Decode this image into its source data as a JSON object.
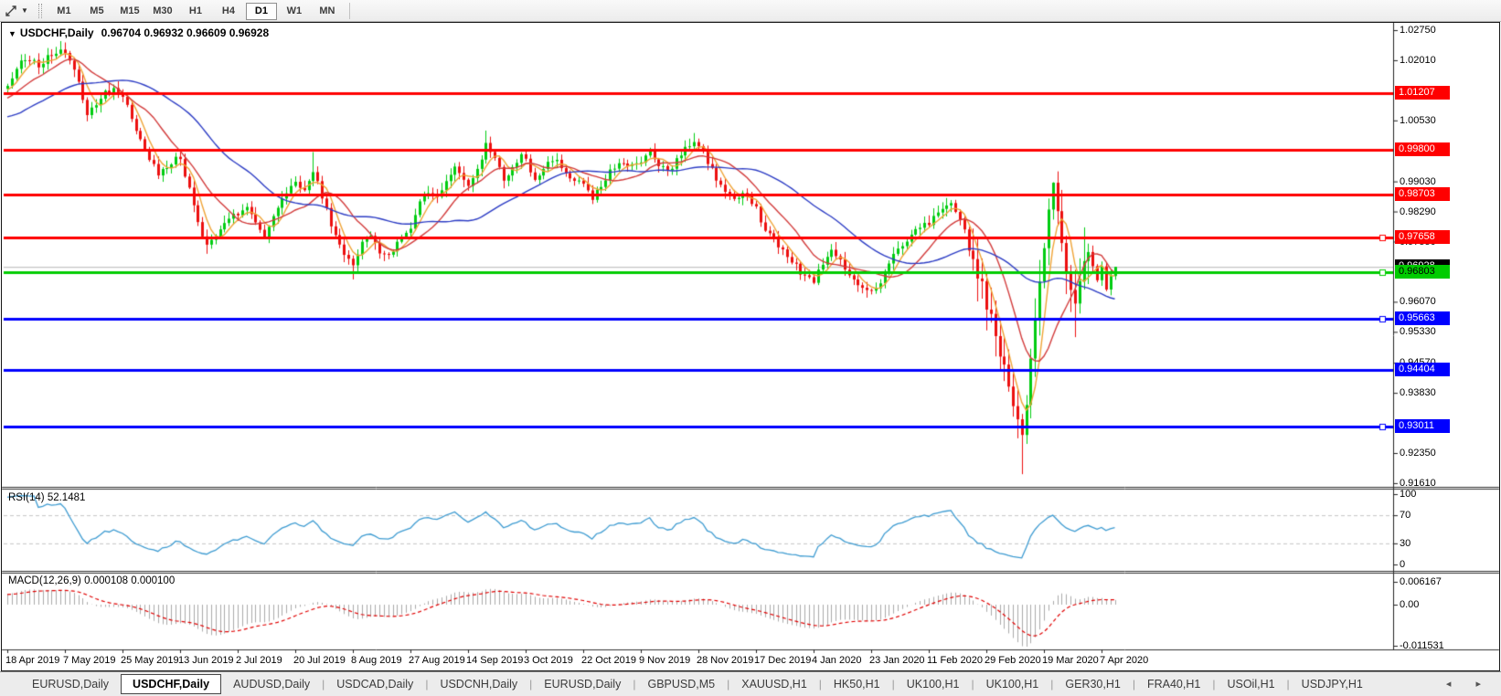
{
  "toolbar": {
    "timeframes": [
      "M1",
      "M5",
      "M15",
      "M30",
      "H1",
      "H4",
      "D1",
      "W1",
      "MN"
    ],
    "active_timeframe": "D1"
  },
  "chart": {
    "symbol_title": "USDCHF,Daily",
    "ohlc_display": "0.96704 0.96932 0.96609 0.96928",
    "price_axis_ticks": [
      1.0275,
      1.0201,
      1.0053,
      0.9903,
      0.9829,
      0.9755,
      0.9607,
      0.9533,
      0.9457,
      0.9383,
      0.9235,
      0.9161
    ],
    "current_price_badge": {
      "label": "0.96928",
      "bg": "#000000",
      "text": "#ffffff"
    }
  },
  "rsi": {
    "label": "RSI(14) 52.1481",
    "period": 14,
    "value": 52.1481,
    "axis_labels": [
      100,
      70,
      30,
      0
    ],
    "dashed_levels": [
      70,
      30
    ],
    "line_color": "#3d9bd1"
  },
  "macd": {
    "label": "MACD(12,26,9) 0.000108 0.000100",
    "axis_labels": [
      0.006167,
      0,
      -0.011531
    ],
    "histogram_color": "#aaaaaa",
    "signal_color": "#e00000"
  },
  "tabs": {
    "items": [
      "EURUSD,Daily",
      "USDCHF,Daily",
      "AUDUSD,Daily",
      "USDCAD,Daily",
      "USDCNH,Daily",
      "EURUSD,Daily",
      "GBPUSD,M5",
      "XAUUSD,H1",
      "HK50,H1",
      "UK100,H1",
      "UK100,H1",
      "GER30,H1",
      "FRA40,H1",
      "USOil,H1",
      "USDJPY,H1"
    ],
    "active_index": 1,
    "scroll_arrows": "◂ ▸"
  },
  "chart_data": {
    "type": "candlestick",
    "symbol": "USDCHF",
    "timeframe": "Daily",
    "visible_bars": 251,
    "last_bar": {
      "open": 0.96704,
      "high": 0.96932,
      "low": 0.96609,
      "close": 0.96928
    },
    "current_price": 0.96928,
    "y_axis": {
      "min": 0.9161,
      "max": 1.0275
    },
    "x_axis_dates": [
      "18 Apr 2019",
      "7 May 2019",
      "25 May 2019",
      "13 Jun 2019",
      "2 Jul 2019",
      "20 Jul 2019",
      "8 Aug 2019",
      "27 Aug 2019",
      "14 Sep 2019",
      "3 Oct 2019",
      "22 Oct 2019",
      "9 Nov 2019",
      "28 Nov 2019",
      "17 Dec 2019",
      "4 Jan 2020",
      "23 Jan 2020",
      "11 Feb 2020",
      "29 Feb 2020",
      "19 Mar 2020",
      "7 Apr 2020"
    ],
    "candle_colors": {
      "up": "#00cc11",
      "down": "#ec0f0f"
    },
    "price_waypoints": [
      [
        0,
        1.0135
      ],
      [
        2,
        1.018
      ],
      [
        4,
        1.0205
      ],
      [
        7,
        1.019
      ],
      [
        10,
        1.0215
      ],
      [
        12,
        1.0225
      ],
      [
        14,
        1.0205
      ],
      [
        16,
        1.015
      ],
      [
        18,
        1.0065
      ],
      [
        20,
        1.009
      ],
      [
        22,
        1.012
      ],
      [
        24,
        1.0135
      ],
      [
        26,
        1.011
      ],
      [
        28,
        1.006
      ],
      [
        30,
        1.001
      ],
      [
        32,
        0.996
      ],
      [
        34,
        0.992
      ],
      [
        36,
        0.994
      ],
      [
        38,
        0.9965
      ],
      [
        39,
        0.995
      ],
      [
        41,
        0.989
      ],
      [
        43,
        0.98
      ],
      [
        45,
        0.9745
      ],
      [
        47,
        0.9765
      ],
      [
        49,
        0.98
      ],
      [
        52,
        0.9825
      ],
      [
        54,
        0.9845
      ],
      [
        56,
        0.9805
      ],
      [
        58,
        0.977
      ],
      [
        60,
        0.982
      ],
      [
        62,
        0.986
      ],
      [
        65,
        0.99
      ],
      [
        67,
        0.9875
      ],
      [
        69,
        0.993
      ],
      [
        71,
        0.9865
      ],
      [
        73,
        0.98
      ],
      [
        75,
        0.974
      ],
      [
        78,
        0.9695
      ],
      [
        80,
        0.9755
      ],
      [
        82,
        0.977
      ],
      [
        84,
        0.973
      ],
      [
        86,
        0.9715
      ],
      [
        88,
        0.9755
      ],
      [
        91,
        0.979
      ],
      [
        93,
        0.9855
      ],
      [
        95,
        0.988
      ],
      [
        97,
        0.986
      ],
      [
        99,
        0.99
      ],
      [
        101,
        0.994
      ],
      [
        103,
        0.991
      ],
      [
        104,
        0.9895
      ],
      [
        106,
        0.993
      ],
      [
        108,
        0.9995
      ],
      [
        110,
        0.9965
      ],
      [
        112,
        0.991
      ],
      [
        114,
        0.9935
      ],
      [
        116,
        0.9975
      ],
      [
        117,
        0.996
      ],
      [
        119,
        0.9905
      ],
      [
        121,
        0.993
      ],
      [
        123,
        0.996
      ],
      [
        125,
        0.994
      ],
      [
        127,
        0.9915
      ],
      [
        130,
        0.99
      ],
      [
        132,
        0.9865
      ],
      [
        134,
        0.989
      ],
      [
        136,
        0.9925
      ],
      [
        138,
        0.9955
      ],
      [
        140,
        0.9935
      ],
      [
        143,
        0.9955
      ],
      [
        145,
        0.9975
      ],
      [
        147,
        0.9945
      ],
      [
        149,
        0.9925
      ],
      [
        151,
        0.9955
      ],
      [
        153,
        0.9985
      ],
      [
        155,
        1.0
      ],
      [
        156,
        0.999
      ],
      [
        158,
        0.995
      ],
      [
        160,
        0.991
      ],
      [
        162,
        0.988
      ],
      [
        164,
        0.9855
      ],
      [
        166,
        0.9875
      ],
      [
        168,
        0.985
      ],
      [
        169,
        0.9835
      ],
      [
        170,
        0.98
      ],
      [
        173,
        0.976
      ],
      [
        176,
        0.972
      ],
      [
        179,
        0.968
      ],
      [
        182,
        0.966
      ],
      [
        184,
        0.97
      ],
      [
        186,
        0.973
      ],
      [
        189,
        0.969
      ],
      [
        192,
        0.965
      ],
      [
        195,
        0.963
      ],
      [
        197,
        0.966
      ],
      [
        200,
        0.972
      ],
      [
        203,
        0.976
      ],
      [
        205,
        0.978
      ],
      [
        208,
        0.98
      ],
      [
        210,
        0.983
      ],
      [
        212,
        0.985
      ],
      [
        214,
        0.9835
      ],
      [
        216,
        0.978
      ],
      [
        218,
        0.97
      ],
      [
        220,
        0.964
      ],
      [
        221,
        0.96
      ],
      [
        222,
        0.956
      ],
      [
        224,
        0.947
      ],
      [
        226,
        0.94
      ],
      [
        228,
        0.933
      ],
      [
        229,
        0.929
      ],
      [
        230,
        0.934
      ],
      [
        231,
        0.945
      ],
      [
        232,
        0.956
      ],
      [
        233,
        0.965
      ],
      [
        234,
        0.974
      ],
      [
        235,
        0.984
      ],
      [
        236,
        0.989
      ],
      [
        237,
        0.983
      ],
      [
        238,
        0.976
      ],
      [
        239,
        0.969
      ],
      [
        240,
        0.963
      ],
      [
        241,
        0.959
      ],
      [
        242,
        0.965
      ],
      [
        243,
        0.971
      ],
      [
        244,
        0.974
      ],
      [
        245,
        0.97
      ],
      [
        246,
        0.9665
      ],
      [
        247,
        0.969
      ],
      [
        248,
        0.9645
      ],
      [
        249,
        0.96704
      ],
      [
        250,
        0.96928
      ]
    ],
    "wick_overrides": {
      "12": {
        "high": 1.0248
      },
      "45": {
        "low": 0.9725
      },
      "69": {
        "high": 0.9975
      },
      "78": {
        "low": 0.9662
      },
      "108": {
        "high": 1.0028
      },
      "155": {
        "high": 1.0022
      },
      "229": {
        "low": 0.9183
      },
      "236": {
        "high": 0.9901
      },
      "241": {
        "low": 0.952
      },
      "243": {
        "high": 0.979
      }
    },
    "horizontal_lines": [
      {
        "price": 1.01207,
        "label": "1.01207",
        "color": "#ff0000",
        "text": "#ffffff",
        "handle": false
      },
      {
        "price": 0.998,
        "label": "0.99800",
        "color": "#ff0000",
        "text": "#ffffff",
        "handle": false
      },
      {
        "price": 0.98703,
        "label": "0.98703",
        "color": "#ff0000",
        "text": "#ffffff",
        "handle": false
      },
      {
        "price": 0.97658,
        "label": "0.97658",
        "color": "#ff0000",
        "text": "#ffffff",
        "handle": true
      },
      {
        "price": 0.96803,
        "label": "0.96803",
        "color": "#00cc00",
        "text": "#000000",
        "handle": true
      },
      {
        "price": 0.95663,
        "label": "0.95663",
        "color": "#0000ff",
        "text": "#ffffff",
        "handle": true
      },
      {
        "price": 0.94404,
        "label": "0.94404",
        "color": "#0000ff",
        "text": "#ffffff",
        "handle": false
      },
      {
        "price": 0.93011,
        "label": "0.93011",
        "color": "#0000ff",
        "text": "#ffffff",
        "handle": true
      }
    ],
    "current_price_line_color": "#b4b4b4",
    "moving_averages": [
      {
        "name": "ma-fast",
        "period": 5,
        "color": "#efa335"
      },
      {
        "name": "ma-mid",
        "period": 13,
        "color": "#d23b3b"
      },
      {
        "name": "ma-slow",
        "period": 34,
        "color": "#2c3cc4"
      }
    ],
    "rsi": {
      "period": 14,
      "value": 52.1481
    },
    "macd": {
      "fast": 12,
      "slow": 26,
      "signal": 9,
      "values": [
        0.000108,
        0.0001
      ]
    }
  }
}
